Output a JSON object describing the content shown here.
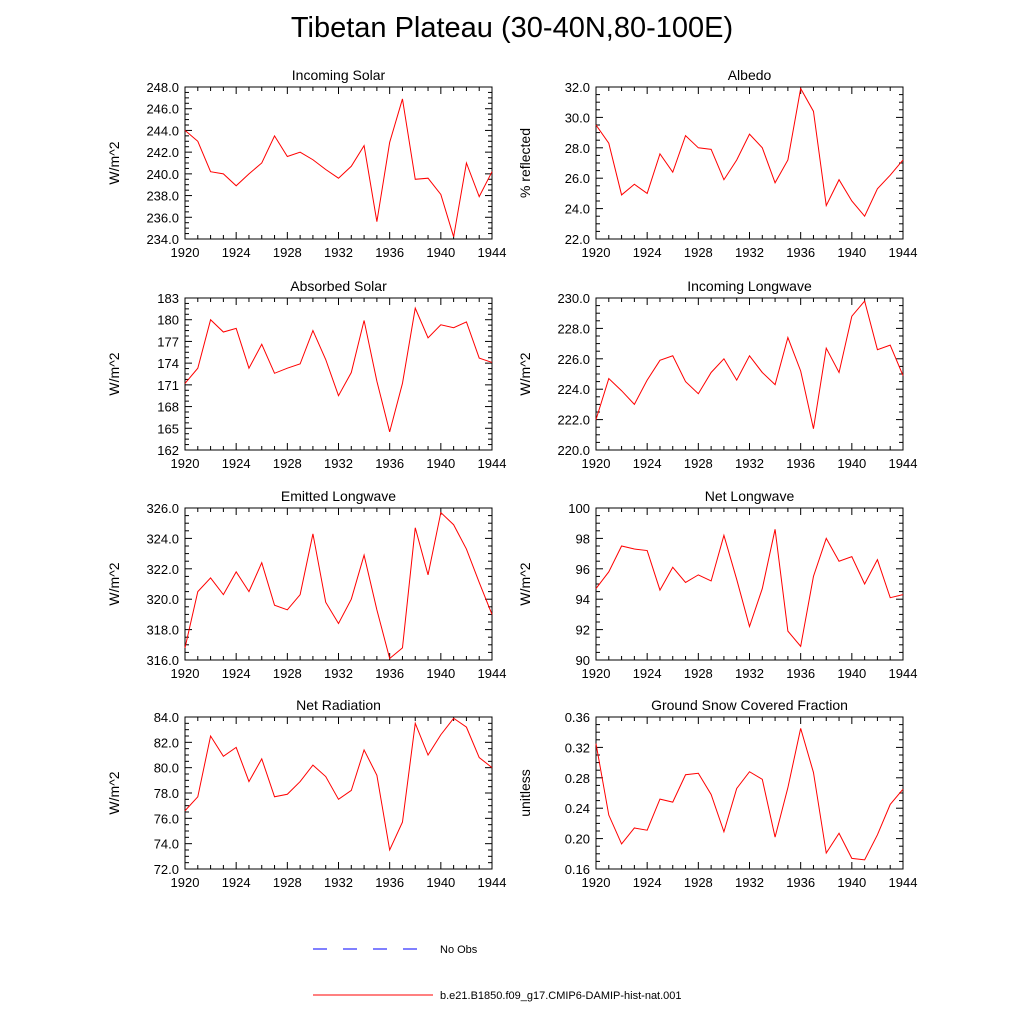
{
  "page": {
    "title": "Tibetan Plateau (30-40N,80-100E)"
  },
  "colors": {
    "model": "#ff0000",
    "obs": "#0000ff",
    "frame": "#000000"
  },
  "legend": {
    "items": [
      {
        "label": "No Obs",
        "style": "dashed",
        "color": "#0000ff"
      },
      {
        "label": "b.e21.B1850.f09_g17.CMIP6-DAMIP-hist-nat.001",
        "style": "solid",
        "color": "#ff0000"
      }
    ]
  },
  "chart_data": [
    {
      "type": "line",
      "title": "Incoming Solar",
      "ylabel": "W/m^2",
      "xlim": [
        1920,
        1944
      ],
      "ylim": [
        234.0,
        248.0
      ],
      "xticks": [
        "1920",
        "1924",
        "1928",
        "1932",
        "1936",
        "1940",
        "1944"
      ],
      "yticks": [
        "234.0",
        "236.0",
        "238.0",
        "240.0",
        "242.0",
        "244.0",
        "246.0",
        "248.0"
      ],
      "x": [
        1920,
        1921,
        1922,
        1923,
        1924,
        1925,
        1926,
        1927,
        1928,
        1929,
        1930,
        1931,
        1932,
        1933,
        1934,
        1935,
        1936,
        1937,
        1938,
        1939,
        1940,
        1941,
        1942,
        1943,
        1944
      ],
      "series": [
        {
          "values": [
            244.0,
            243.0,
            240.2,
            240.0,
            238.9,
            240.0,
            241.0,
            243.5,
            241.6,
            242.0,
            241.3,
            240.4,
            239.6,
            240.7,
            242.6,
            235.6,
            242.9,
            246.9,
            239.5,
            239.6,
            238.1,
            234.2,
            241.0,
            237.9,
            240.2
          ]
        }
      ]
    },
    {
      "type": "line",
      "title": "Albedo",
      "ylabel": "% reflected",
      "xlim": [
        1920,
        1944
      ],
      "ylim": [
        22.0,
        32.0
      ],
      "xticks": [
        "1920",
        "1924",
        "1928",
        "1932",
        "1936",
        "1940",
        "1944"
      ],
      "yticks": [
        "22.0",
        "24.0",
        "26.0",
        "28.0",
        "30.0",
        "32.0"
      ],
      "x": [
        1920,
        1921,
        1922,
        1923,
        1924,
        1925,
        1926,
        1927,
        1928,
        1929,
        1930,
        1931,
        1932,
        1933,
        1934,
        1935,
        1936,
        1937,
        1938,
        1939,
        1940,
        1941,
        1942,
        1943,
        1944
      ],
      "series": [
        {
          "values": [
            29.5,
            28.3,
            24.9,
            25.6,
            25.0,
            27.6,
            26.4,
            28.8,
            28.0,
            27.9,
            25.9,
            27.2,
            28.9,
            28.0,
            25.7,
            27.2,
            31.9,
            30.4,
            24.2,
            25.9,
            24.5,
            23.5,
            25.3,
            26.2,
            27.2
          ]
        }
      ]
    },
    {
      "type": "line",
      "title": "Absorbed Solar",
      "ylabel": "W/m^2",
      "xlim": [
        1920,
        1944
      ],
      "ylim": [
        162,
        183
      ],
      "xticks": [
        "1920",
        "1924",
        "1928",
        "1932",
        "1936",
        "1940",
        "1944"
      ],
      "yticks": [
        "162",
        "165",
        "168",
        "171",
        "174",
        "177",
        "180",
        "183"
      ],
      "x": [
        1920,
        1921,
        1922,
        1923,
        1924,
        1925,
        1926,
        1927,
        1928,
        1929,
        1930,
        1931,
        1932,
        1933,
        1934,
        1935,
        1936,
        1937,
        1938,
        1939,
        1940,
        1941,
        1942,
        1943,
        1944
      ],
      "series": [
        {
          "values": [
            171.2,
            173.3,
            180.0,
            178.3,
            178.8,
            173.3,
            176.6,
            172.6,
            173.3,
            173.9,
            178.5,
            174.5,
            169.5,
            172.7,
            179.9,
            171.5,
            164.5,
            171.2,
            181.6,
            177.5,
            179.3,
            178.9,
            179.7,
            174.7,
            174.1
          ]
        }
      ]
    },
    {
      "type": "line",
      "title": "Incoming Longwave",
      "ylabel": "W/m^2",
      "xlim": [
        1920,
        1944
      ],
      "ylim": [
        220.0,
        230.0
      ],
      "xticks": [
        "1920",
        "1924",
        "1928",
        "1932",
        "1936",
        "1940",
        "1944"
      ],
      "yticks": [
        "220.0",
        "222.0",
        "224.0",
        "226.0",
        "228.0",
        "230.0"
      ],
      "x": [
        1920,
        1921,
        1922,
        1923,
        1924,
        1925,
        1926,
        1927,
        1928,
        1929,
        1930,
        1931,
        1932,
        1933,
        1934,
        1935,
        1936,
        1937,
        1938,
        1939,
        1940,
        1941,
        1942,
        1943,
        1944
      ],
      "series": [
        {
          "values": [
            222.0,
            224.7,
            223.9,
            223.0,
            224.6,
            225.9,
            226.2,
            224.5,
            223.7,
            225.1,
            226.0,
            224.6,
            226.2,
            225.1,
            224.3,
            227.4,
            225.2,
            221.4,
            226.7,
            225.1,
            228.8,
            229.8,
            226.6,
            226.9,
            224.9
          ]
        }
      ]
    },
    {
      "type": "line",
      "title": "Emitted Longwave",
      "ylabel": "W/m^2",
      "xlim": [
        1920,
        1944
      ],
      "ylim": [
        316.0,
        326.0
      ],
      "xticks": [
        "1920",
        "1924",
        "1928",
        "1932",
        "1936",
        "1940",
        "1944"
      ],
      "yticks": [
        "316.0",
        "318.0",
        "320.0",
        "322.0",
        "324.0",
        "326.0"
      ],
      "x": [
        1920,
        1921,
        1922,
        1923,
        1924,
        1925,
        1926,
        1927,
        1928,
        1929,
        1930,
        1931,
        1932,
        1933,
        1934,
        1935,
        1936,
        1937,
        1938,
        1939,
        1940,
        1941,
        1942,
        1943,
        1944
      ],
      "series": [
        {
          "values": [
            316.8,
            320.5,
            321.4,
            320.3,
            321.8,
            320.5,
            322.4,
            319.6,
            319.3,
            320.3,
            324.3,
            319.8,
            318.4,
            320.0,
            322.9,
            319.3,
            316.1,
            316.8,
            324.7,
            321.6,
            325.7,
            324.9,
            323.3,
            321.1,
            319.0
          ]
        }
      ]
    },
    {
      "type": "line",
      "title": "Net Longwave",
      "ylabel": "W/m^2",
      "xlim": [
        1920,
        1944
      ],
      "ylim": [
        90,
        100
      ],
      "xticks": [
        "1920",
        "1924",
        "1928",
        "1932",
        "1936",
        "1940",
        "1944"
      ],
      "yticks": [
        "90",
        "92",
        "94",
        "96",
        "98",
        "100"
      ],
      "x": [
        1920,
        1921,
        1922,
        1923,
        1924,
        1925,
        1926,
        1927,
        1928,
        1929,
        1930,
        1931,
        1932,
        1933,
        1934,
        1935,
        1936,
        1937,
        1938,
        1939,
        1940,
        1941,
        1942,
        1943,
        1944
      ],
      "series": [
        {
          "values": [
            94.7,
            95.8,
            97.5,
            97.3,
            97.2,
            94.6,
            96.1,
            95.1,
            95.6,
            95.2,
            98.2,
            95.3,
            92.2,
            94.7,
            98.6,
            91.9,
            90.9,
            95.5,
            98.0,
            96.5,
            96.8,
            95.0,
            96.6,
            94.1,
            94.3
          ]
        }
      ]
    },
    {
      "type": "line",
      "title": "Net Radiation",
      "ylabel": "W/m^2",
      "xlim": [
        1920,
        1944
      ],
      "ylim": [
        72.0,
        84.0
      ],
      "xticks": [
        "1920",
        "1924",
        "1928",
        "1932",
        "1936",
        "1940",
        "1944"
      ],
      "yticks": [
        "72.0",
        "74.0",
        "76.0",
        "78.0",
        "80.0",
        "82.0",
        "84.0"
      ],
      "x": [
        1920,
        1921,
        1922,
        1923,
        1924,
        1925,
        1926,
        1927,
        1928,
        1929,
        1930,
        1931,
        1932,
        1933,
        1934,
        1935,
        1936,
        1937,
        1938,
        1939,
        1940,
        1941,
        1942,
        1943,
        1944
      ],
      "series": [
        {
          "values": [
            76.6,
            77.7,
            82.5,
            80.9,
            81.6,
            78.9,
            80.7,
            77.7,
            77.9,
            78.9,
            80.2,
            79.3,
            77.5,
            78.2,
            81.4,
            79.4,
            73.5,
            75.7,
            83.5,
            81.0,
            82.6,
            83.9,
            83.2,
            80.8,
            80.0
          ]
        }
      ]
    },
    {
      "type": "line",
      "title": "Ground Snow Covered Fraction",
      "ylabel": "unitless",
      "xlim": [
        1920,
        1944
      ],
      "ylim": [
        0.16,
        0.36
      ],
      "xticks": [
        "1920",
        "1924",
        "1928",
        "1932",
        "1936",
        "1940",
        "1944"
      ],
      "yticks": [
        "0.16",
        "0.20",
        "0.24",
        "0.28",
        "0.32",
        "0.36"
      ],
      "x": [
        1920,
        1921,
        1922,
        1923,
        1924,
        1925,
        1926,
        1927,
        1928,
        1929,
        1930,
        1931,
        1932,
        1933,
        1934,
        1935,
        1936,
        1937,
        1938,
        1939,
        1940,
        1941,
        1942,
        1943,
        1944
      ],
      "series": [
        {
          "values": [
            0.325,
            0.231,
            0.193,
            0.214,
            0.211,
            0.252,
            0.248,
            0.284,
            0.286,
            0.258,
            0.209,
            0.266,
            0.288,
            0.278,
            0.202,
            0.267,
            0.345,
            0.287,
            0.181,
            0.207,
            0.174,
            0.172,
            0.205,
            0.245,
            0.265
          ]
        }
      ]
    }
  ]
}
